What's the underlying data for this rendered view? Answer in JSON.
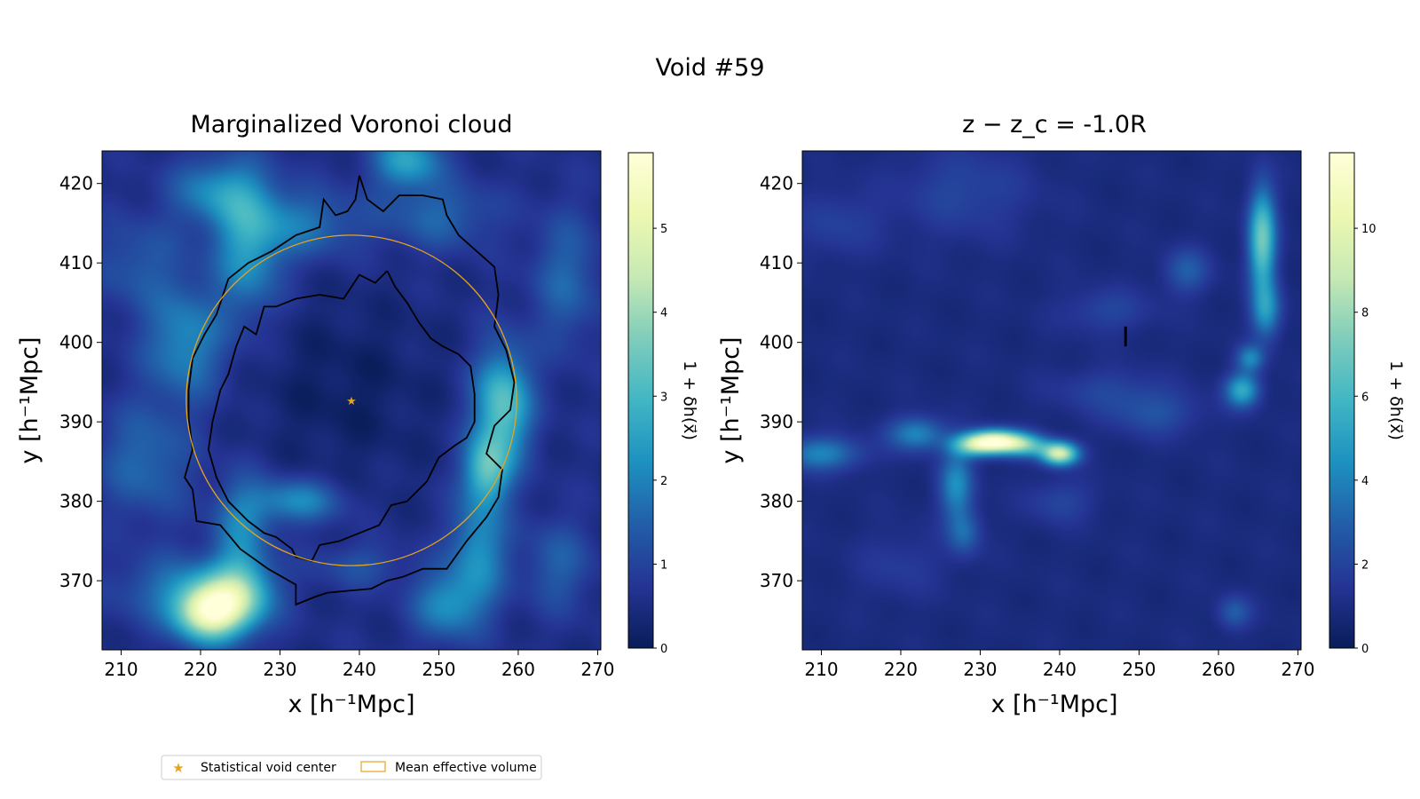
{
  "suptitle": "Void #59",
  "colors": {
    "void_center": "#e6a41e",
    "effective_volume": "#e6a41e",
    "contour": "#000000",
    "colormap": [
      "#081d58",
      "#253494",
      "#225ea8",
      "#1d91c0",
      "#41b6c4",
      "#7fcdbb",
      "#c7e9b4",
      "#edf8b1",
      "#ffffd9"
    ]
  },
  "legend": {
    "items": [
      {
        "label": "Statistical void center",
        "marker": "star"
      },
      {
        "label": "Mean effective volume",
        "marker": "rectangle-outline"
      }
    ]
  },
  "chart_data": [
    {
      "type": "heatmap",
      "title": "Marginalized Voronoi cloud",
      "xlabel": "x [h⁻¹Mpc]",
      "ylabel": "y [h⁻¹Mpc]",
      "xlim": [
        207.6,
        270.4
      ],
      "ylim": [
        361.3,
        424.1
      ],
      "xticks": [
        210,
        220,
        230,
        240,
        250,
        260,
        270
      ],
      "yticks": [
        370,
        380,
        390,
        400,
        410,
        420
      ],
      "colorbar": {
        "label": "1 + δh(x⃗)",
        "range": [
          0,
          5.9
        ],
        "ticks": [
          0,
          1,
          2,
          3,
          4,
          5
        ]
      },
      "void_center": {
        "x": 239.0,
        "y": 392.7
      },
      "mean_effective_volume_circle": {
        "center": [
          239.0,
          392.7
        ],
        "radius": 20.8
      },
      "blobs": [
        {
          "x": 221,
          "y": 366,
          "sx": 3.0,
          "sy": 2.5,
          "a": 4.3
        },
        {
          "x": 225,
          "y": 368,
          "sx": 3.0,
          "sy": 3.0,
          "a": 2.2
        },
        {
          "x": 218,
          "y": 369,
          "sx": 6.0,
          "sy": 3.0,
          "a": 1.2
        },
        {
          "x": 225,
          "y": 376,
          "sx": 2.5,
          "sy": 5.0,
          "a": 1.4
        },
        {
          "x": 218,
          "y": 400,
          "sx": 3.5,
          "sy": 5.0,
          "a": 1.6
        },
        {
          "x": 226,
          "y": 412,
          "sx": 3.0,
          "sy": 6.0,
          "a": 1.8
        },
        {
          "x": 222,
          "y": 419,
          "sx": 4.0,
          "sy": 3.0,
          "a": 1.5
        },
        {
          "x": 233,
          "y": 415,
          "sx": 5.0,
          "sy": 3.0,
          "a": 1.2
        },
        {
          "x": 246,
          "y": 423,
          "sx": 3.0,
          "sy": 2.5,
          "a": 2.0
        },
        {
          "x": 250,
          "y": 416,
          "sx": 5.0,
          "sy": 3.0,
          "a": 1.0
        },
        {
          "x": 258,
          "y": 392,
          "sx": 2.5,
          "sy": 5.0,
          "a": 2.8
        },
        {
          "x": 256,
          "y": 384,
          "sx": 2.0,
          "sy": 3.0,
          "a": 2.3
        },
        {
          "x": 255,
          "y": 374,
          "sx": 2.5,
          "sy": 5.0,
          "a": 1.7
        },
        {
          "x": 251,
          "y": 367,
          "sx": 3.0,
          "sy": 3.0,
          "a": 1.6
        },
        {
          "x": 232,
          "y": 380,
          "sx": 4.0,
          "sy": 2.0,
          "a": 1.6
        },
        {
          "x": 213,
          "y": 385,
          "sx": 4.0,
          "sy": 5.0,
          "a": 1.1
        },
        {
          "x": 266,
          "y": 408,
          "sx": 3.0,
          "sy": 6.0,
          "a": 1.0
        },
        {
          "x": 265,
          "y": 372,
          "sx": 3.0,
          "sy": 4.0,
          "a": 0.9
        },
        {
          "x": 212,
          "y": 410,
          "sx": 4.0,
          "sy": 4.0,
          "a": 0.8
        },
        {
          "x": 240,
          "y": 372,
          "sx": 4.0,
          "sy": 2.0,
          "a": 0.7
        },
        {
          "x": 238,
          "y": 394,
          "sx": 8.0,
          "sy": 8.0,
          "a": -0.4
        }
      ],
      "background_level": 0.55,
      "contours": [
        [
          [
            240.0,
            421.0
          ],
          [
            241.0,
            418.0
          ],
          [
            243.0,
            416.5
          ],
          [
            245.0,
            418.5
          ],
          [
            248.0,
            418.5
          ],
          [
            250.5,
            418.0
          ],
          [
            251.0,
            416.0
          ],
          [
            252.5,
            413.5
          ],
          [
            257.0,
            409.5
          ],
          [
            257.5,
            406.0
          ],
          [
            257.0,
            402.0
          ],
          [
            258.5,
            399.0
          ],
          [
            259.5,
            395.0
          ],
          [
            259.0,
            391.5
          ],
          [
            257.0,
            389.5
          ],
          [
            256.0,
            386.0
          ],
          [
            258.0,
            384.0
          ],
          [
            257.5,
            380.5
          ],
          [
            256.0,
            378.0
          ],
          [
            253.5,
            375.0
          ],
          [
            251.0,
            371.5
          ],
          [
            248.0,
            371.5
          ],
          [
            245.5,
            370.5
          ],
          [
            243.5,
            370.0
          ],
          [
            241.5,
            369.0
          ],
          [
            236.0,
            368.5
          ],
          [
            234.5,
            368.0
          ],
          [
            232.0,
            367.0
          ],
          [
            232.0,
            369.5
          ],
          [
            228.5,
            371.5
          ],
          [
            225.0,
            374.0
          ],
          [
            222.5,
            377.0
          ],
          [
            219.5,
            377.5
          ],
          [
            219.0,
            381.5
          ],
          [
            218.0,
            383.0
          ],
          [
            219.0,
            386.5
          ],
          [
            218.5,
            390.5
          ],
          [
            218.5,
            394.0
          ],
          [
            219.0,
            398.0
          ],
          [
            220.5,
            401.0
          ],
          [
            222.0,
            403.5
          ],
          [
            223.5,
            408.0
          ],
          [
            226.0,
            410.0
          ],
          [
            229.0,
            411.5
          ],
          [
            232.0,
            413.5
          ],
          [
            235.0,
            414.5
          ],
          [
            235.5,
            418.0
          ],
          [
            237.0,
            416.0
          ],
          [
            238.5,
            416.5
          ],
          [
            239.5,
            418.0
          ],
          [
            240.0,
            421.0
          ]
        ],
        [
          [
            243.5,
            409.0
          ],
          [
            242.0,
            407.5
          ],
          [
            240.0,
            408.5
          ],
          [
            238.0,
            405.5
          ],
          [
            235.0,
            406.0
          ],
          [
            232.0,
            405.5
          ],
          [
            229.5,
            404.5
          ],
          [
            228.0,
            404.5
          ],
          [
            227.0,
            401.0
          ],
          [
            225.5,
            402.0
          ],
          [
            224.5,
            399.5
          ],
          [
            223.5,
            396.0
          ],
          [
            222.5,
            394.0
          ],
          [
            221.5,
            390.0
          ],
          [
            221.0,
            386.5
          ],
          [
            222.0,
            383.0
          ],
          [
            223.5,
            380.0
          ],
          [
            226.0,
            377.5
          ],
          [
            228.0,
            376.0
          ],
          [
            229.5,
            375.5
          ],
          [
            231.5,
            374.0
          ],
          [
            232.0,
            373.0
          ],
          [
            234.0,
            372.5
          ],
          [
            235.0,
            374.5
          ],
          [
            237.5,
            375.0
          ],
          [
            240.0,
            376.0
          ],
          [
            242.5,
            377.0
          ],
          [
            244.0,
            379.5
          ],
          [
            246.0,
            380.0
          ],
          [
            248.5,
            382.5
          ],
          [
            250.0,
            385.5
          ],
          [
            252.0,
            387.0
          ],
          [
            253.5,
            388.0
          ],
          [
            254.5,
            390.0
          ],
          [
            254.5,
            393.5
          ],
          [
            254.0,
            397.0
          ],
          [
            252.5,
            398.5
          ],
          [
            250.5,
            399.5
          ],
          [
            249.0,
            400.5
          ],
          [
            247.5,
            402.5
          ],
          [
            246.0,
            405.0
          ],
          [
            244.5,
            407.0
          ],
          [
            243.5,
            409.0
          ]
        ]
      ]
    },
    {
      "type": "heatmap",
      "title": "z − z_c = -1.0R",
      "xlabel": "x [h⁻¹Mpc]",
      "ylabel": "y [h⁻¹Mpc]",
      "xlim": [
        207.6,
        270.4
      ],
      "ylim": [
        361.3,
        424.1
      ],
      "xticks": [
        210,
        220,
        230,
        240,
        250,
        260,
        270
      ],
      "yticks": [
        370,
        380,
        390,
        400,
        410,
        420
      ],
      "colorbar": {
        "label": "1 + δh(x⃗)",
        "range": [
          0,
          11.8
        ],
        "ticks": [
          0,
          2,
          4,
          6,
          8,
          10
        ]
      },
      "marker_segment": {
        "x": 248.3,
        "y1": 399.5,
        "y2": 402.0
      },
      "blobs": [
        {
          "x": 232,
          "y": 387.5,
          "sx": 2.5,
          "sy": 1.0,
          "a": 10.5
        },
        {
          "x": 229,
          "y": 387,
          "sx": 2.0,
          "sy": 1.0,
          "a": 4.0
        },
        {
          "x": 240,
          "y": 386,
          "sx": 1.6,
          "sy": 1.0,
          "a": 8.5
        },
        {
          "x": 236,
          "y": 387,
          "sx": 2.0,
          "sy": 1.0,
          "a": 4.0
        },
        {
          "x": 227,
          "y": 382,
          "sx": 1.5,
          "sy": 3.0,
          "a": 3.5
        },
        {
          "x": 228,
          "y": 376,
          "sx": 1.5,
          "sy": 2.0,
          "a": 2.2
        },
        {
          "x": 222,
          "y": 388.5,
          "sx": 2.5,
          "sy": 1.5,
          "a": 3.3
        },
        {
          "x": 210,
          "y": 386,
          "sx": 3.5,
          "sy": 1.5,
          "a": 3.2
        },
        {
          "x": 265.5,
          "y": 413,
          "sx": 1.2,
          "sy": 4.5,
          "a": 6.2
        },
        {
          "x": 266,
          "y": 404,
          "sx": 1.3,
          "sy": 2.5,
          "a": 3.5
        },
        {
          "x": 264,
          "y": 398,
          "sx": 1.2,
          "sy": 1.2,
          "a": 3.2
        },
        {
          "x": 263,
          "y": 394,
          "sx": 1.5,
          "sy": 1.5,
          "a": 4.5
        },
        {
          "x": 256,
          "y": 409,
          "sx": 2.0,
          "sy": 2.0,
          "a": 2.0
        },
        {
          "x": 252,
          "y": 391,
          "sx": 4.0,
          "sy": 2.0,
          "a": 1.5
        },
        {
          "x": 228,
          "y": 419,
          "sx": 6.0,
          "sy": 4.0,
          "a": 1.2
        },
        {
          "x": 212,
          "y": 415,
          "sx": 4.0,
          "sy": 3.0,
          "a": 1.0
        },
        {
          "x": 246,
          "y": 394,
          "sx": 5.0,
          "sy": 2.0,
          "a": 1.1
        },
        {
          "x": 240,
          "y": 380,
          "sx": 3.0,
          "sy": 2.0,
          "a": 1.2
        },
        {
          "x": 262,
          "y": 366,
          "sx": 1.5,
          "sy": 1.5,
          "a": 2.0
        },
        {
          "x": 246,
          "y": 404,
          "sx": 4.0,
          "sy": 2.0,
          "a": 1.2
        },
        {
          "x": 220,
          "y": 372,
          "sx": 4.0,
          "sy": 3.0,
          "a": 0.8
        }
      ],
      "background_level": 0.9
    }
  ]
}
